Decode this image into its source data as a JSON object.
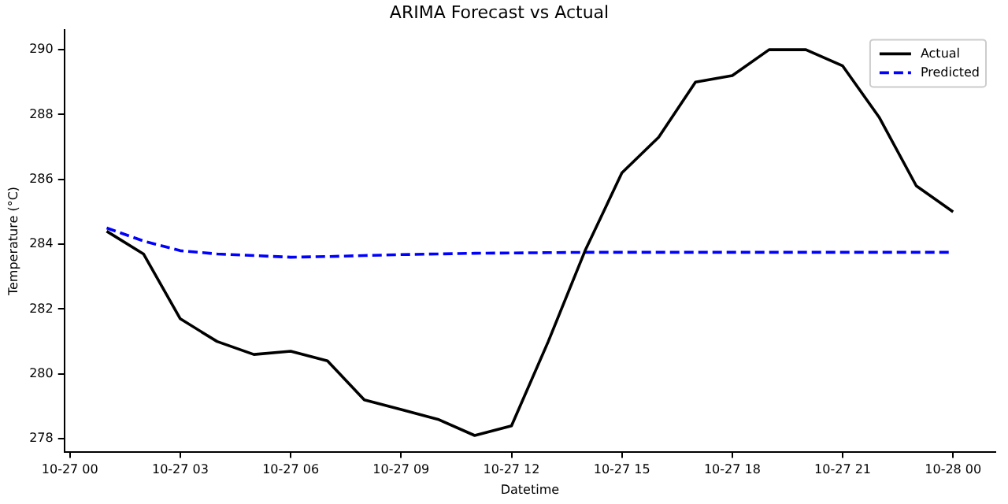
{
  "chart_data": {
    "type": "line",
    "title": "ARIMA Forecast vs Actual",
    "xlabel": "Datetime",
    "ylabel": "Temperature (°C)",
    "x": [
      "--10-27T01:00",
      "--10-27T02:00",
      "--10-27T03:00",
      "--10-27T04:00",
      "--10-27T05:00",
      "--10-27T06:00",
      "--10-27T07:00",
      "--10-27T08:00",
      "--10-27T09:00",
      "--10-27T10:00",
      "--10-27T11:00",
      "--10-27T12:00",
      "--10-27T13:00",
      "--10-27T14:00",
      "--10-27T15:00",
      "--10-27T16:00",
      "--10-27T17:00",
      "--10-27T18:00",
      "--10-27T19:00",
      "--10-27T20:00",
      "--10-27T21:00",
      "--10-27T22:00",
      "--10-27T23:00",
      "--10-28T00:00"
    ],
    "series": [
      {
        "name": "Actual",
        "color": "#000000",
        "line_style": "solid",
        "values": [
          284.4,
          283.7,
          281.7,
          281.0,
          280.6,
          280.7,
          280.4,
          279.2,
          278.9,
          278.6,
          278.1,
          278.4,
          281.0,
          283.8,
          286.2,
          287.3,
          289.0,
          289.2,
          290.0,
          290.0,
          289.5,
          287.9,
          285.8,
          285.0
        ]
      },
      {
        "name": "Predicted",
        "color": "#0000ff",
        "line_style": "dashed",
        "values": [
          284.5,
          284.1,
          283.8,
          283.7,
          283.65,
          283.6,
          283.62,
          283.65,
          283.68,
          283.7,
          283.72,
          283.73,
          283.74,
          283.75,
          283.75,
          283.75,
          283.75,
          283.75,
          283.75,
          283.75,
          283.75,
          283.75,
          283.75,
          283.75
        ]
      }
    ],
    "xlim": [
      "--10-26T23:51",
      "--10-28T01:09"
    ],
    "xticks": [
      {
        "value": "--10-27T00:00",
        "label": "10-27 00"
      },
      {
        "value": "--10-27T03:00",
        "label": "10-27 03"
      },
      {
        "value": "--10-27T06:00",
        "label": "10-27 06"
      },
      {
        "value": "--10-27T09:00",
        "label": "10-27 09"
      },
      {
        "value": "--10-27T12:00",
        "label": "10-27 12"
      },
      {
        "value": "--10-27T15:00",
        "label": "10-27 15"
      },
      {
        "value": "--10-27T18:00",
        "label": "10-27 18"
      },
      {
        "value": "--10-27T21:00",
        "label": "10-27 21"
      },
      {
        "value": "--10-28T00:00",
        "label": "10-28 00"
      }
    ],
    "ylim": [
      277.6,
      290.6
    ],
    "yticks": [
      278,
      280,
      282,
      284,
      286,
      288,
      290
    ],
    "grid": false,
    "legend": "top right",
    "marker": "none"
  }
}
